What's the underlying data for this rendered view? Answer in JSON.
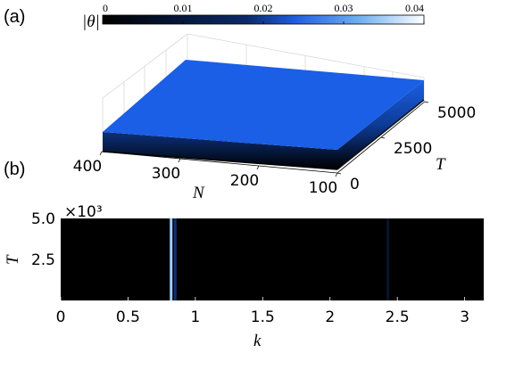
{
  "panels": {
    "a": "(a)",
    "b": "(b)"
  },
  "colorbar": {
    "label": "|θ|",
    "ticks": [
      "0",
      "0.01",
      "0.02",
      "0.03",
      "0.04"
    ],
    "range": [
      0,
      0.04
    ],
    "colors": [
      "#000000",
      "#0b2a6b",
      "#1f5ee0",
      "#6fb0f2",
      "#ffffff"
    ]
  },
  "chart_data": [
    {
      "panel": "(a)",
      "type": "surface",
      "xlabel": "N",
      "ylabel": "T",
      "zlabel": "|θ|",
      "x_ticks": [
        "400",
        "300",
        "200",
        "100"
      ],
      "y_ticks": [
        "0",
        "2500",
        "5000"
      ],
      "xlim": [
        100,
        400
      ],
      "ylim": [
        0,
        5000
      ],
      "surface_value": 0.02,
      "colors": {
        "top": "#1a5fe6",
        "edge_bottom": "#000000"
      }
    },
    {
      "panel": "(b)",
      "type": "heatmap",
      "xlabel": "k",
      "ylabel": "T",
      "x_ticks": [
        "0",
        "0.5",
        "1",
        "1.5",
        "2",
        "2.5",
        "3"
      ],
      "y_ticks": [
        "2.5",
        "5.0"
      ],
      "y_exponent": "×10³",
      "xlim": [
        0,
        3.1416
      ],
      "ylim": [
        0,
        5000
      ],
      "background_value": 0,
      "lines": [
        {
          "k": 0.82,
          "value": 0.03,
          "color": "#9fd0ff"
        },
        {
          "k": 0.85,
          "value": 0.008,
          "color": "#12306e"
        },
        {
          "k": 2.43,
          "value": 0.003,
          "color": "#08152f"
        }
      ]
    }
  ]
}
